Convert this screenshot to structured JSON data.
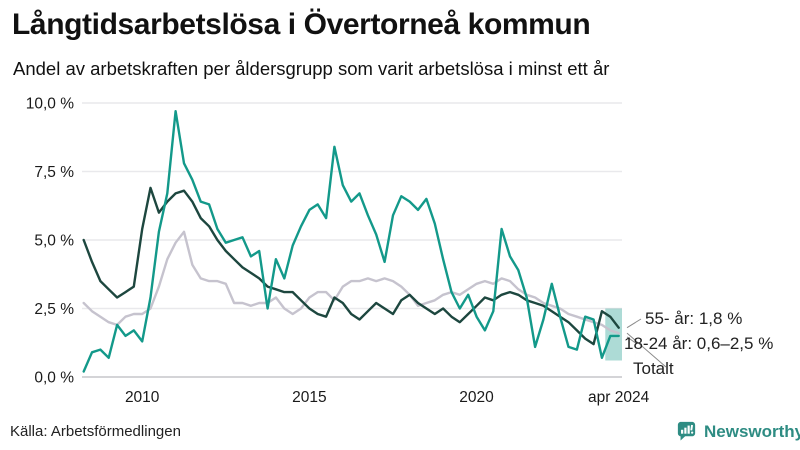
{
  "footer": {
    "source": "Källa: Arbetsförmedlingen",
    "brand": "Newsworthy"
  },
  "colors": {
    "teal": "#13998a",
    "dark_green": "#1d473f",
    "gray": "#c6c3ce",
    "band": "rgba(19,153,138,0.35)",
    "grid": "#e9e9ec",
    "axis": "#c6c6ca",
    "text": "#1a1a1a",
    "connector": "#8a8a8a",
    "brand_teal": "#2e8c83"
  },
  "chart_data": {
    "type": "line",
    "title": "Långtidsarbetslösa i Övertorneå kommun",
    "subtitle": "Andel av arbetskraften per åldersgrupp som varit arbetslösa i minst ett år",
    "xlabel": "",
    "ylabel": "",
    "ylim": [
      0,
      10
    ],
    "xlim": [
      2008.2,
      2024.35
    ],
    "grid": true,
    "legend_position": "end-of-line-labels",
    "x": [
      2008.25,
      2008.5,
      2008.75,
      2009,
      2009.25,
      2009.5,
      2009.75,
      2010,
      2010.25,
      2010.5,
      2010.75,
      2011,
      2011.25,
      2011.5,
      2011.75,
      2012,
      2012.25,
      2012.5,
      2012.75,
      2013,
      2013.25,
      2013.5,
      2013.75,
      2014,
      2014.25,
      2014.5,
      2014.75,
      2015,
      2015.25,
      2015.5,
      2015.75,
      2016,
      2016.25,
      2016.5,
      2016.75,
      2017,
      2017.25,
      2017.5,
      2017.75,
      2018,
      2018.25,
      2018.5,
      2018.75,
      2019,
      2019.25,
      2019.5,
      2019.75,
      2020,
      2020.25,
      2020.5,
      2020.75,
      2021,
      2021.25,
      2021.5,
      2021.75,
      2022,
      2022.25,
      2022.5,
      2022.75,
      2023,
      2023.25,
      2023.5,
      2023.75,
      2024,
      2024.25
    ],
    "series": [
      {
        "name": "Totalt",
        "color_key": "gray",
        "values": [
          2.7,
          2.4,
          2.2,
          2.0,
          1.9,
          2.2,
          2.3,
          2.3,
          2.5,
          3.3,
          4.3,
          4.9,
          5.3,
          4.1,
          3.6,
          3.5,
          3.5,
          3.4,
          2.7,
          2.7,
          2.6,
          2.7,
          2.7,
          2.9,
          2.5,
          2.3,
          2.5,
          2.9,
          3.1,
          3.1,
          2.8,
          3.3,
          3.5,
          3.5,
          3.6,
          3.5,
          3.6,
          3.5,
          3.3,
          3.0,
          2.6,
          2.7,
          2.8,
          3.0,
          3.1,
          3.0,
          3.2,
          3.4,
          3.5,
          3.4,
          3.6,
          3.5,
          3.2,
          3.0,
          2.9,
          2.7,
          2.6,
          2.5,
          2.3,
          2.2,
          2.1,
          2.0,
          1.9,
          1.7,
          1.6
        ]
      },
      {
        "name": "55- år",
        "color_key": "dark_green",
        "values": [
          5.0,
          4.2,
          3.5,
          3.2,
          2.9,
          3.1,
          3.3,
          5.4,
          6.9,
          6.0,
          6.4,
          6.7,
          6.8,
          6.4,
          5.8,
          5.5,
          5.0,
          4.6,
          4.3,
          4.0,
          3.8,
          3.6,
          3.3,
          3.2,
          3.1,
          3.1,
          2.8,
          2.5,
          2.3,
          2.2,
          2.9,
          2.7,
          2.3,
          2.1,
          2.4,
          2.7,
          2.5,
          2.3,
          2.8,
          3.0,
          2.7,
          2.5,
          2.3,
          2.5,
          2.2,
          2.0,
          2.3,
          2.6,
          2.9,
          2.8,
          3.0,
          3.1,
          3.0,
          2.8,
          2.7,
          2.6,
          2.4,
          2.2,
          2.0,
          1.7,
          1.4,
          1.2,
          2.4,
          2.2,
          1.8
        ]
      },
      {
        "name": "18-24 år",
        "color_key": "teal",
        "values": [
          0.2,
          0.9,
          1.0,
          0.7,
          1.9,
          1.5,
          1.7,
          1.3,
          2.9,
          5.3,
          6.7,
          9.7,
          7.8,
          7.2,
          6.4,
          6.3,
          5.4,
          4.9,
          5.0,
          5.1,
          4.4,
          4.6,
          2.5,
          4.3,
          3.6,
          4.8,
          5.5,
          6.1,
          6.3,
          5.8,
          8.4,
          7.0,
          6.4,
          6.7,
          5.9,
          5.2,
          4.2,
          5.9,
          6.6,
          6.4,
          6.1,
          6.5,
          5.6,
          4.3,
          3.1,
          2.5,
          3.0,
          2.2,
          1.7,
          2.4,
          5.4,
          4.4,
          3.9,
          2.9,
          1.1,
          2.1,
          3.4,
          2.2,
          1.1,
          1.0,
          2.2,
          2.1,
          0.7,
          1.5,
          1.5
        ]
      }
    ],
    "uncertainty_band": {
      "series": "18-24 år",
      "x_start": 2023.85,
      "x_end": 2024.35,
      "low": 0.6,
      "high": 2.5
    },
    "y_ticks": [
      {
        "v": 0,
        "label": "0,0 %"
      },
      {
        "v": 2.5,
        "label": "2,5 %"
      },
      {
        "v": 5,
        "label": "5,0 %"
      },
      {
        "v": 7.5,
        "label": "7,5 %"
      },
      {
        "v": 10,
        "label": "10,0 %"
      }
    ],
    "x_ticks": [
      {
        "v": 2010,
        "label": "2010"
      },
      {
        "v": 2015,
        "label": "2015"
      },
      {
        "v": 2020,
        "label": "2020"
      },
      {
        "v": 2024.25,
        "label": "apr 2024"
      }
    ],
    "annotations": [
      {
        "label": "55- år: 1,8 %",
        "value": 1.8
      },
      {
        "label": "18-24 år: 0,6–2,5 %",
        "value": 1.5
      },
      {
        "label": "Totalt",
        "value": 1.6
      }
    ]
  }
}
